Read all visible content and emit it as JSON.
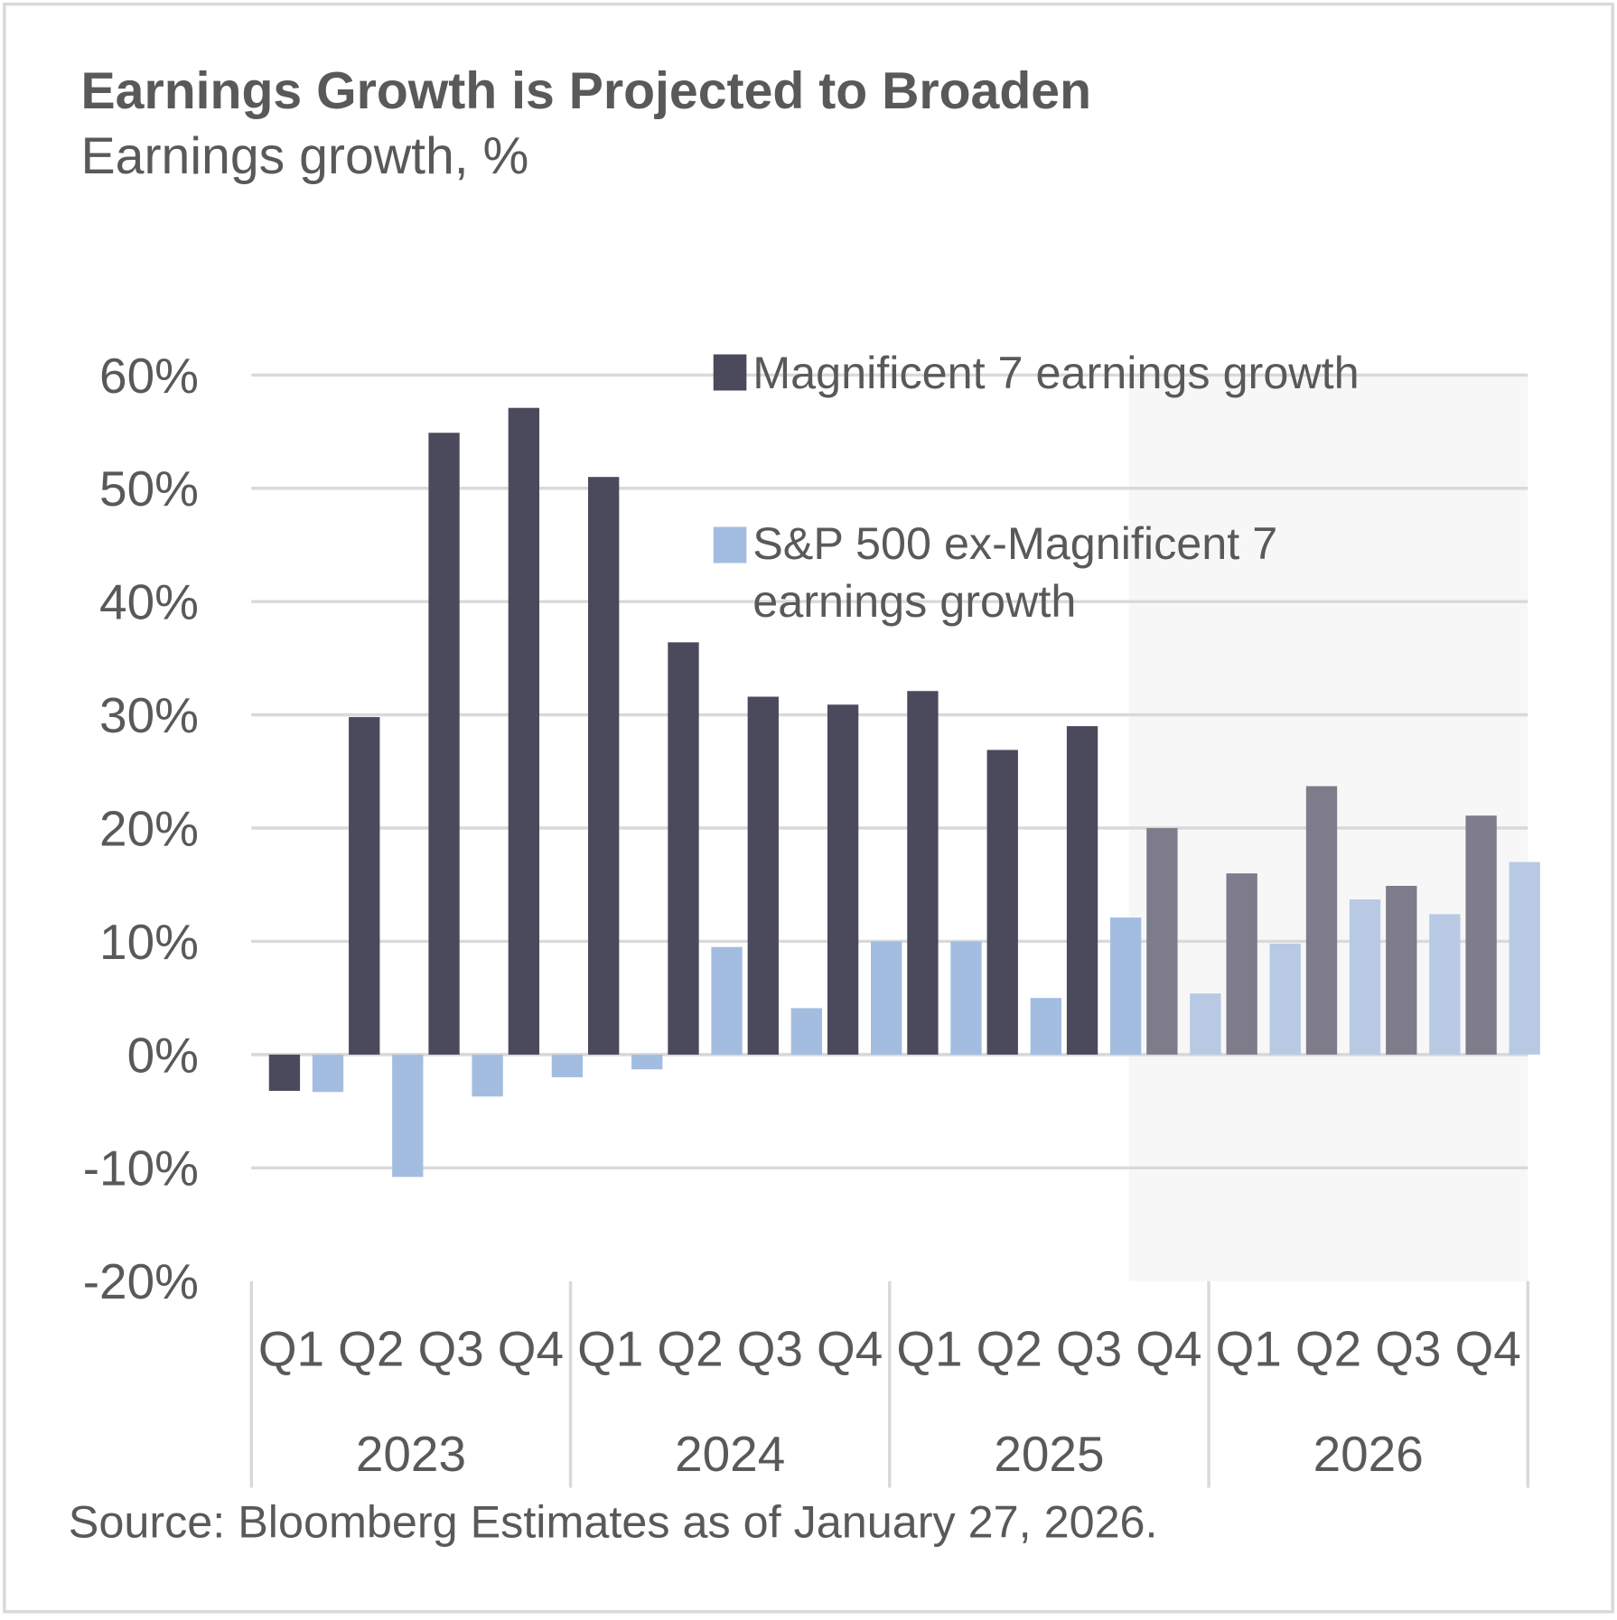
{
  "chart_data": {
    "type": "bar",
    "title": "Earnings Growth is Projected to Broaden",
    "subtitle": "Earnings growth, %",
    "source": "Source: Bloomberg Estimates as of January 27, 2026.",
    "years": [
      "2023",
      "2024",
      "2025",
      "2026"
    ],
    "quarters": [
      "Q1",
      "Q2",
      "Q3",
      "Q4"
    ],
    "categories": [
      "Q1 2023",
      "Q2 2023",
      "Q3 2023",
      "Q4 2023",
      "Q1 2024",
      "Q2 2024",
      "Q3 2024",
      "Q4 2024",
      "Q1 2025",
      "Q2 2025",
      "Q3 2025",
      "Q4 2025",
      "Q1 2026",
      "Q2 2026",
      "Q3 2026",
      "Q4 2026"
    ],
    "forecast_from": "Q4 2025",
    "ylim": [
      -20,
      60
    ],
    "yticks": [
      "60%",
      "50%",
      "40%",
      "30%",
      "20%",
      "10%",
      "0%",
      "-10%",
      "-20%"
    ],
    "ytick_values": [
      60,
      50,
      40,
      30,
      20,
      10,
      0,
      -10,
      -20
    ],
    "grid": true,
    "legend_placement": "top-right",
    "series": [
      {
        "name": "Magnificent 7 earnings growth",
        "color": "#4b4a5c",
        "forecast_color": "#7e7c8b",
        "values": [
          -3.2,
          29.8,
          54.9,
          57.1,
          51.0,
          36.4,
          31.6,
          30.9,
          32.1,
          26.9,
          29.0,
          20.0,
          16.0,
          23.7,
          14.9,
          21.1
        ]
      },
      {
        "name_lines": [
          "S&P 500 ex-Magnificent 7",
          "earnings growth"
        ],
        "name": "S&P 500 ex-Magnificent 7 earnings growth",
        "color": "#a3bde1",
        "forecast_color": "#b8c9e4",
        "values": [
          -3.3,
          -10.8,
          -3.7,
          -2.0,
          -1.3,
          9.5,
          4.1,
          10.0,
          10.0,
          5.0,
          12.1,
          5.4,
          9.8,
          13.7,
          12.4,
          17.0
        ]
      }
    ]
  }
}
